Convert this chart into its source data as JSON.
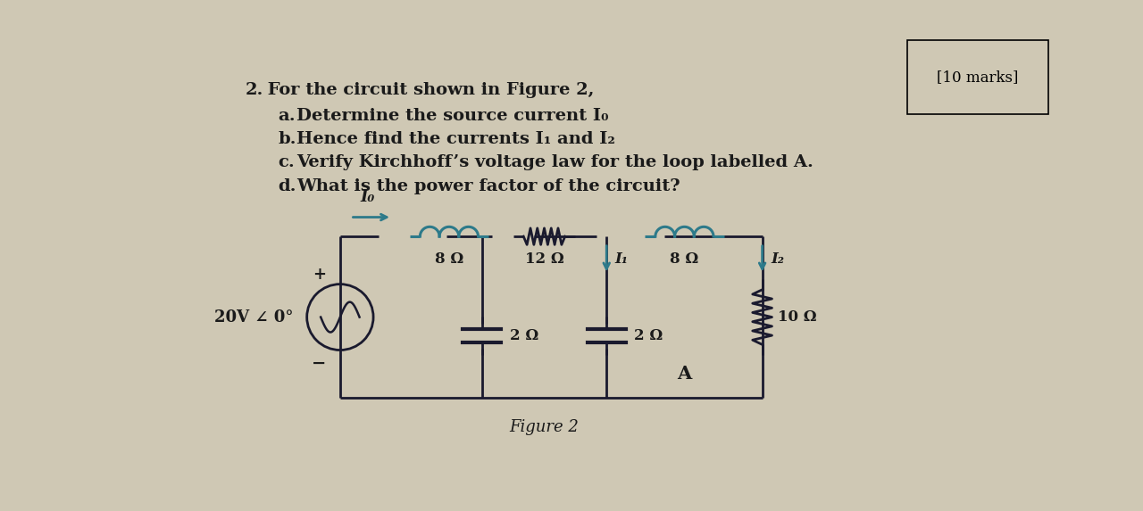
{
  "bg_color": "#cfc8b4",
  "title_mark": "[10 marks]",
  "question_num": "2.",
  "question_text": " For the circuit shown in Figure 2,",
  "parts": [
    [
      "a.",
      "Determine the source current I₀"
    ],
    [
      "b.",
      "Hence find the currents I₁ and I₂"
    ],
    [
      "c.",
      "Verify Kirchhoff’s voltage law for the loop labelled A."
    ],
    [
      "d.",
      "What is the power factor of the circuit?"
    ]
  ],
  "figure_label": "Figure 2",
  "source_label": "20V ∠ 0°",
  "plus": "+",
  "minus": "−",
  "Io_label": "I₀",
  "ind1_label": "8 Ω",
  "res_mid_label": "12 Ω",
  "ind2_label": "8 Ω",
  "cap1_label": "2 Ω",
  "cap2_label": "2 Ω",
  "res_right_label": "10 Ω",
  "I1_label": "I₁",
  "I2_label": "I₂",
  "A_label": "A",
  "coil_color": "#2d7a8a",
  "wire_color": "#1a1a2e",
  "text_color": "#1a1a1a",
  "source_color": "#1a1a2e"
}
